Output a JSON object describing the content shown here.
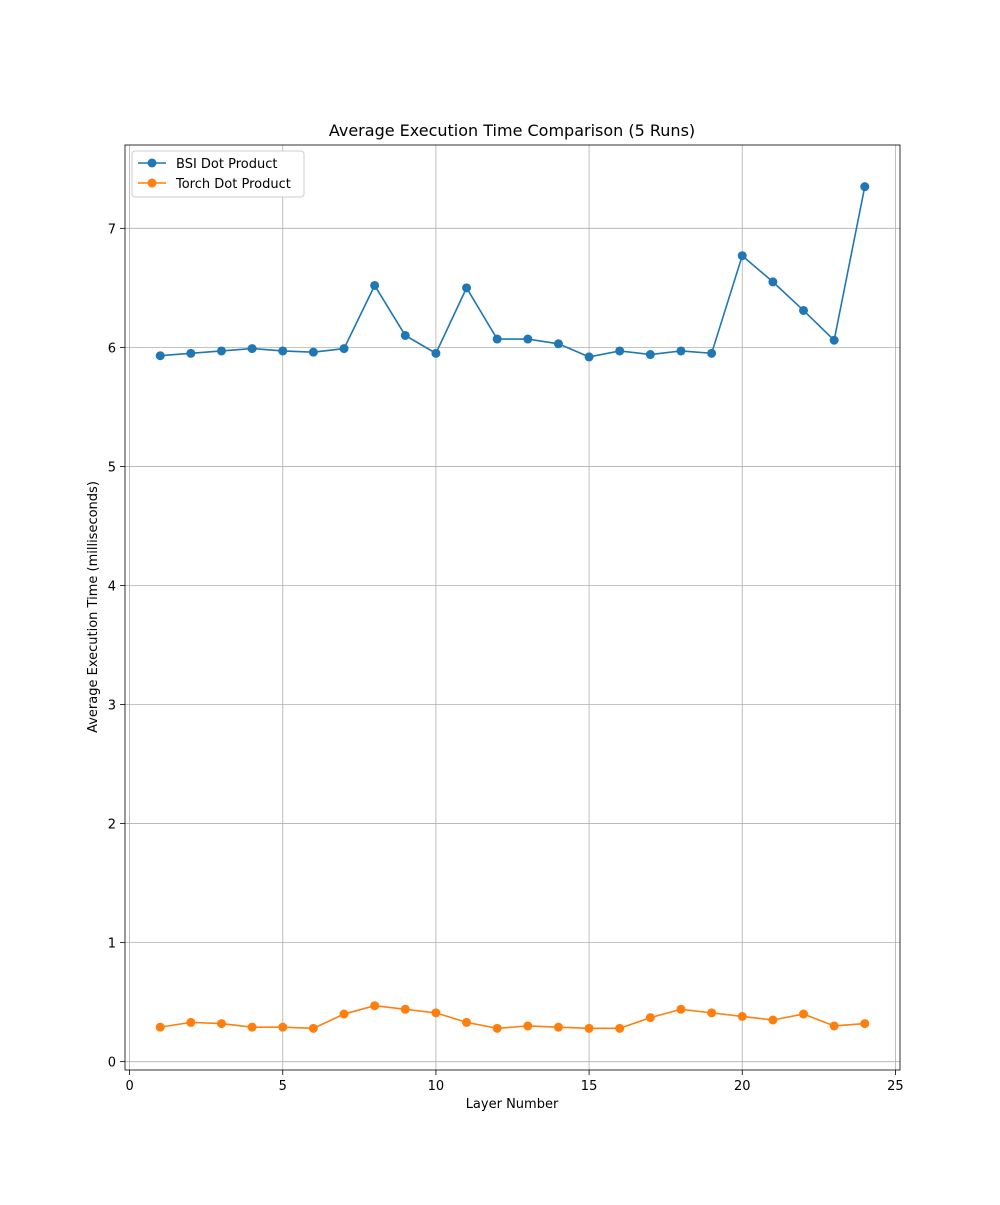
{
  "chart_data": {
    "type": "line",
    "title": "Average Execution Time Comparison (5 Runs)",
    "xlabel": "Layer Number",
    "ylabel": "Average Execution Time (milliseconds)",
    "x": [
      1,
      2,
      3,
      4,
      5,
      6,
      7,
      8,
      9,
      10,
      11,
      12,
      13,
      14,
      15,
      16,
      17,
      18,
      19,
      20,
      21,
      22,
      23,
      24
    ],
    "xlim": [
      -0.15,
      25.15
    ],
    "ylim": [
      -0.07,
      7.7
    ],
    "xticks": [
      "0",
      "5",
      "10",
      "15",
      "20",
      "25"
    ],
    "yticks": [
      "0",
      "1",
      "2",
      "3",
      "4",
      "5",
      "6",
      "7"
    ],
    "grid": true,
    "legend_position": "top-left",
    "marker": "circle",
    "series": [
      {
        "name": "BSI Dot Product",
        "color": "#1f77b4",
        "values": [
          5.93,
          5.95,
          5.97,
          5.99,
          5.97,
          5.96,
          5.99,
          6.52,
          6.1,
          5.95,
          6.5,
          6.07,
          6.07,
          6.03,
          5.92,
          5.97,
          5.94,
          5.97,
          5.95,
          6.77,
          6.55,
          6.31,
          6.06,
          7.35
        ]
      },
      {
        "name": "Torch Dot Product",
        "color": "#ff7f0e",
        "values": [
          0.29,
          0.33,
          0.32,
          0.29,
          0.29,
          0.28,
          0.4,
          0.47,
          0.44,
          0.41,
          0.33,
          0.28,
          0.3,
          0.29,
          0.28,
          0.28,
          0.37,
          0.44,
          0.41,
          0.38,
          0.35,
          0.4,
          0.3,
          0.32
        ]
      }
    ]
  }
}
